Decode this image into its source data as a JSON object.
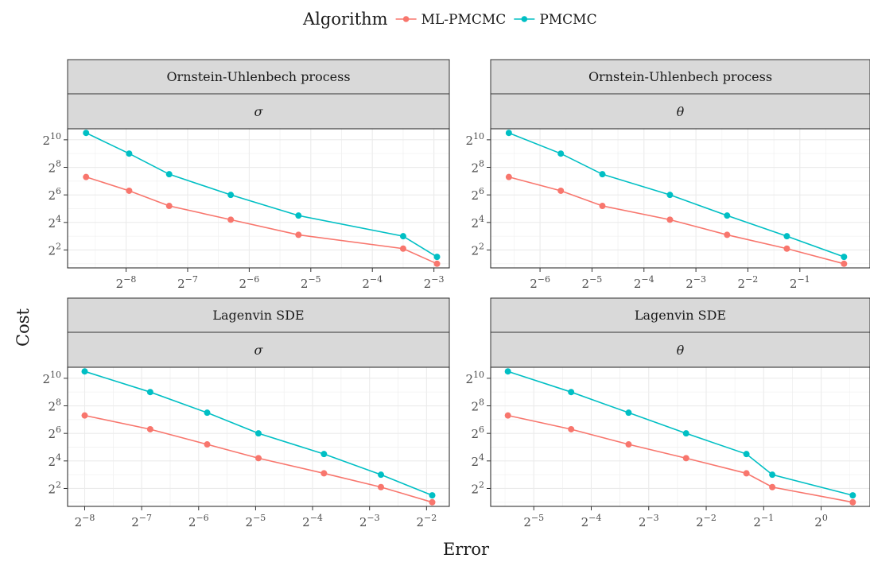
{
  "legend": {
    "title": "Algorithm",
    "items": [
      {
        "label": "ML-PMCMC",
        "color": "#F8766D"
      },
      {
        "label": "PMCMC",
        "color": "#00BFC4"
      }
    ]
  },
  "axes": {
    "xlabel": "Error",
    "ylabel": "Cost"
  },
  "chart_data": [
    {
      "type": "line",
      "facet": {
        "row": "Ornstein-Uhlenbech process",
        "col": "σ"
      },
      "x_scale": "log2",
      "y_scale": "log2",
      "xlim_log2": [
        -8.95,
        -2.75
      ],
      "ylim_log2": [
        0.7,
        10.8
      ],
      "x_ticks": [
        -8,
        -7,
        -6,
        -5,
        -4,
        -3
      ],
      "y_ticks": [
        2,
        4,
        6,
        8,
        10
      ],
      "series": [
        {
          "name": "ML-PMCMC",
          "x_log2": [
            -8.65,
            -7.95,
            -7.3,
            -6.3,
            -5.2,
            -3.5,
            -2.95
          ],
          "y_log2": [
            7.3,
            6.3,
            5.2,
            4.2,
            3.1,
            2.1,
            1.0
          ]
        },
        {
          "name": "PMCMC",
          "x_log2": [
            -8.65,
            -7.95,
            -7.3,
            -6.3,
            -5.2,
            -3.5,
            -2.95
          ],
          "y_log2": [
            10.5,
            9.0,
            7.5,
            6.0,
            4.5,
            3.0,
            1.5
          ]
        }
      ]
    },
    {
      "type": "line",
      "facet": {
        "row": "Ornstein-Uhlenbech process",
        "col": "θ"
      },
      "x_scale": "log2",
      "y_scale": "log2",
      "xlim_log2": [
        -6.95,
        0.35
      ],
      "ylim_log2": [
        0.7,
        10.8
      ],
      "x_ticks": [
        -6,
        -5,
        -4,
        -3,
        -2,
        -1
      ],
      "y_ticks": [
        2,
        4,
        6,
        8,
        10
      ],
      "series": [
        {
          "name": "ML-PMCMC",
          "x_log2": [
            -6.6,
            -5.6,
            -4.8,
            -3.5,
            -2.4,
            -1.25,
            -0.15
          ],
          "y_log2": [
            7.3,
            6.3,
            5.2,
            4.2,
            3.1,
            2.1,
            1.0
          ]
        },
        {
          "name": "PMCMC",
          "x_log2": [
            -6.6,
            -5.6,
            -4.8,
            -3.5,
            -2.4,
            -1.25,
            -0.15
          ],
          "y_log2": [
            10.5,
            9.0,
            7.5,
            6.0,
            4.5,
            3.0,
            1.5
          ]
        }
      ]
    },
    {
      "type": "line",
      "facet": {
        "row": "Lagenvin SDE",
        "col": "σ"
      },
      "x_scale": "log2",
      "y_scale": "log2",
      "xlim_log2": [
        -8.3,
        -1.6
      ],
      "ylim_log2": [
        0.7,
        10.8
      ],
      "x_ticks": [
        -8,
        -7,
        -6,
        -5,
        -4,
        -3,
        -2
      ],
      "y_ticks": [
        2,
        4,
        6,
        8,
        10
      ],
      "series": [
        {
          "name": "ML-PMCMC",
          "x_log2": [
            -8.0,
            -6.85,
            -5.85,
            -4.95,
            -3.8,
            -2.8,
            -1.9
          ],
          "y_log2": [
            7.3,
            6.3,
            5.2,
            4.2,
            3.1,
            2.1,
            1.0
          ]
        },
        {
          "name": "PMCMC",
          "x_log2": [
            -8.0,
            -6.85,
            -5.85,
            -4.95,
            -3.8,
            -2.8,
            -1.9
          ],
          "y_log2": [
            10.5,
            9.0,
            7.5,
            6.0,
            4.5,
            3.0,
            1.5
          ]
        }
      ]
    },
    {
      "type": "line",
      "facet": {
        "row": "Lagenvin SDE",
        "col": "θ"
      },
      "x_scale": "log2",
      "y_scale": "log2",
      "xlim_log2": [
        -5.75,
        0.85
      ],
      "ylim_log2": [
        0.7,
        10.8
      ],
      "x_ticks": [
        -5,
        -4,
        -3,
        -2,
        -1,
        0
      ],
      "y_ticks": [
        2,
        4,
        6,
        8,
        10
      ],
      "series": [
        {
          "name": "ML-PMCMC",
          "x_log2": [
            -5.45,
            -4.35,
            -3.35,
            -2.35,
            -1.3,
            -0.85,
            0.55
          ],
          "y_log2": [
            7.3,
            6.3,
            5.2,
            4.2,
            3.1,
            2.1,
            1.0
          ]
        },
        {
          "name": "PMCMC",
          "x_log2": [
            -5.45,
            -4.35,
            -3.35,
            -2.35,
            -1.3,
            -0.85,
            0.55
          ],
          "y_log2": [
            10.5,
            9.0,
            7.5,
            6.0,
            4.5,
            3.0,
            1.5
          ]
        }
      ]
    }
  ]
}
